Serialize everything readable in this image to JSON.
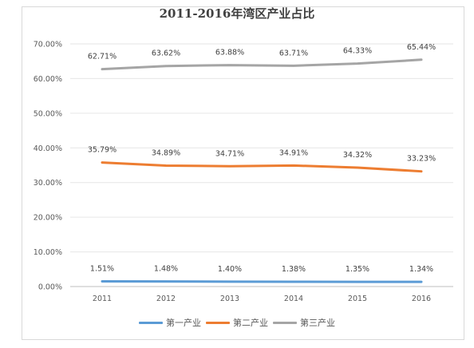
{
  "chart_data": {
    "type": "line",
    "title": "2011-2016年湾区产业占比",
    "xlabel": "",
    "ylabel": "",
    "categories": [
      "2011",
      "2012",
      "2013",
      "2014",
      "2015",
      "2016"
    ],
    "ylim": [
      0,
      70
    ],
    "yticks": [
      "0.00%",
      "10.00%",
      "20.00%",
      "30.00%",
      "40.00%",
      "50.00%",
      "60.00%",
      "70.00%"
    ],
    "grid": true,
    "legend_position": "bottom",
    "series": [
      {
        "name": "第一产业",
        "color": "#5b9bd5",
        "values": [
          1.51,
          1.48,
          1.4,
          1.38,
          1.35,
          1.34
        ],
        "labels": [
          "1.51%",
          "1.48%",
          "1.40%",
          "1.38%",
          "1.35%",
          "1.34%"
        ]
      },
      {
        "name": "第二产业",
        "color": "#ed7d31",
        "values": [
          35.79,
          34.89,
          34.71,
          34.91,
          34.32,
          33.23
        ],
        "labels": [
          "35.79%",
          "34.89%",
          "34.71%",
          "34.91%",
          "34.32%",
          "33.23%"
        ]
      },
      {
        "name": "第三产业",
        "color": "#a5a5a5",
        "values": [
          62.71,
          63.62,
          63.88,
          63.71,
          64.33,
          65.44
        ],
        "labels": [
          "62.71%",
          "63.62%",
          "63.88%",
          "63.71%",
          "64.33%",
          "65.44%"
        ]
      }
    ]
  }
}
